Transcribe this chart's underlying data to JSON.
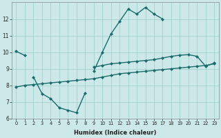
{
  "xlabel": "Humidex (Indice chaleur)",
  "background_color": "#cce8e8",
  "grid_color": "#99cccc",
  "line_color": "#1a6b6b",
  "line1_x": [
    0,
    1,
    2,
    3,
    4,
    5,
    6,
    7,
    8,
    9,
    10,
    11,
    12,
    13,
    14,
    15,
    16,
    17,
    18,
    19,
    20,
    21,
    22,
    23
  ],
  "line1_y": [
    10.05,
    9.8,
    null,
    null,
    null,
    null,
    null,
    null,
    null,
    9.1,
    9.2,
    9.3,
    9.35,
    9.4,
    9.45,
    9.5,
    9.55,
    9.65,
    9.75,
    9.82,
    9.85,
    9.75,
    9.15,
    9.35
  ],
  "line2_x": [
    9,
    10,
    11,
    12,
    13,
    14,
    15,
    16,
    17
  ],
  "line2_y": [
    8.85,
    10.0,
    11.1,
    11.85,
    12.6,
    12.3,
    12.7,
    12.3,
    12.0
  ],
  "line3_x": [
    2,
    3,
    4,
    5,
    6,
    7,
    8
  ],
  "line3_y": [
    8.5,
    7.5,
    7.2,
    6.65,
    6.5,
    6.35,
    7.55
  ],
  "line4_x": [
    0,
    1,
    2,
    3,
    4,
    5,
    6,
    7,
    8,
    9,
    10,
    11,
    12,
    13,
    14,
    15,
    16,
    17,
    18,
    19,
    20,
    21,
    22,
    23
  ],
  "line4_y": [
    7.9,
    8.0,
    8.05,
    8.1,
    8.15,
    8.2,
    8.25,
    8.3,
    8.35,
    8.4,
    8.5,
    8.6,
    8.7,
    8.75,
    8.8,
    8.85,
    8.9,
    8.95,
    9.0,
    9.05,
    9.1,
    9.15,
    9.2,
    9.3
  ],
  "ylim": [
    6,
    13
  ],
  "xlim": [
    -0.5,
    23.5
  ],
  "yticks": [
    6,
    7,
    8,
    9,
    10,
    11,
    12
  ],
  "xticks": [
    0,
    1,
    2,
    3,
    4,
    5,
    6,
    7,
    8,
    9,
    10,
    11,
    12,
    13,
    14,
    15,
    16,
    17,
    18,
    19,
    20,
    21,
    22,
    23
  ],
  "marker": "D",
  "marker_size": 2.2,
  "line_width": 1.0
}
